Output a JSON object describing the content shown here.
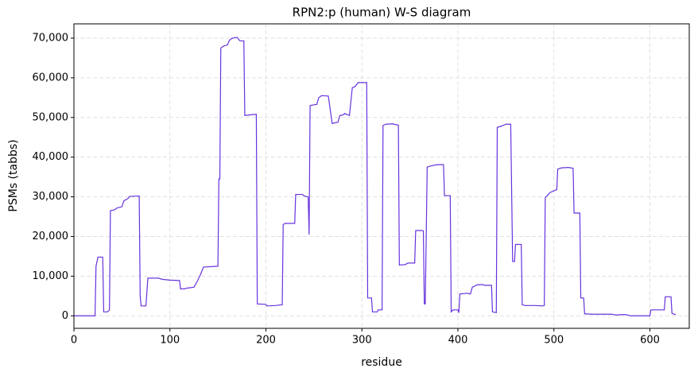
{
  "chart_data": {
    "type": "line",
    "title": "RPN2:p (human) W-S diagram",
    "x_label": "residue",
    "y_label": "PSMs (tabbs)",
    "xlim": [
      0,
      641
    ],
    "ylim": [
      -3150,
      73600
    ],
    "grid": true,
    "xticks": [
      0,
      100,
      200,
      300,
      400,
      500,
      600
    ],
    "yticks": [
      0,
      {
        "value": 10000,
        "label": "10,000"
      },
      {
        "value": 20000,
        "label": "20,000"
      },
      {
        "value": 30000,
        "label": "30,000"
      },
      {
        "value": 40000,
        "label": "40,000"
      },
      {
        "value": 50000,
        "label": "50,000"
      },
      {
        "value": 60000,
        "label": "60,000"
      },
      {
        "value": 70000,
        "label": "70,000"
      }
    ],
    "series": [
      {
        "color": "#6633dd",
        "x": [
          0,
          22,
          23,
          25,
          30,
          31,
          35,
          37,
          38,
          42,
          45,
          50,
          52,
          56,
          58,
          68,
          69,
          70,
          75,
          77,
          88,
          92,
          100,
          110,
          111,
          115,
          118,
          125,
          128,
          132,
          135,
          150,
          151,
          152,
          153,
          156,
          160,
          162,
          165,
          170,
          173,
          177,
          178,
          185,
          190,
          191,
          200,
          201,
          210,
          217,
          218,
          220,
          230,
          231,
          238,
          240,
          244,
          245,
          246,
          250,
          253,
          255,
          258,
          265,
          267,
          269,
          275,
          277,
          280,
          282,
          287,
          290,
          293,
          296,
          305,
          306,
          310,
          311,
          316,
          317,
          321,
          322,
          325,
          332,
          335,
          338,
          339,
          345,
          348,
          355,
          356,
          363,
          364,
          365,
          366,
          368,
          372,
          378,
          385,
          386,
          392,
          393,
          395,
          400,
          401,
          402,
          410,
          413,
          415,
          420,
          425,
          428,
          435,
          436,
          440,
          441,
          445,
          450,
          455,
          457,
          459,
          460,
          466,
          467,
          470,
          480,
          488,
          490,
          491,
          493,
          496,
          500,
          503,
          504,
          508,
          515,
          520,
          521,
          527,
          528,
          531,
          532,
          540,
          560,
          565,
          570,
          575,
          580,
          600,
          601,
          615,
          616,
          622,
          623,
          627
        ],
        "values": [
          0,
          0,
          12500,
          14800,
          14800,
          1000,
          1000,
          1500,
          26500,
          26700,
          27200,
          27500,
          29000,
          29500,
          30100,
          30200,
          5000,
          2500,
          2500,
          9500,
          9500,
          9200,
          9000,
          8900,
          6800,
          6800,
          7000,
          7200,
          8500,
          10500,
          12300,
          12500,
          34500,
          34500,
          67500,
          68000,
          68300,
          69500,
          70000,
          70200,
          69300,
          69300,
          50500,
          50700,
          50800,
          3000,
          2900,
          2500,
          2600,
          2800,
          23000,
          23300,
          23300,
          30600,
          30600,
          30200,
          30000,
          20500,
          53000,
          53200,
          53300,
          55000,
          55500,
          55400,
          52000,
          48500,
          48800,
          50500,
          50600,
          51000,
          50500,
          57500,
          57800,
          58800,
          58800,
          4500,
          4500,
          1000,
          1000,
          1500,
          1500,
          48000,
          48300,
          48400,
          48200,
          48100,
          12800,
          12900,
          13300,
          13300,
          21500,
          21500,
          21400,
          3000,
          3000,
          37500,
          37800,
          38100,
          38100,
          30300,
          30300,
          1000,
          1500,
          1500,
          800,
          5500,
          5700,
          5500,
          7200,
          7800,
          7900,
          7700,
          7700,
          1000,
          800,
          47500,
          47800,
          48300,
          48300,
          13700,
          13700,
          18000,
          18000,
          2800,
          2600,
          2600,
          2500,
          2600,
          29800,
          30300,
          31100,
          31500,
          31800,
          37000,
          37300,
          37400,
          37200,
          25900,
          25900,
          4500,
          4500,
          500,
          400,
          400,
          200,
          300,
          300,
          0,
          0,
          1500,
          1500,
          4800,
          4800,
          600,
          300
        ]
      }
    ]
  }
}
